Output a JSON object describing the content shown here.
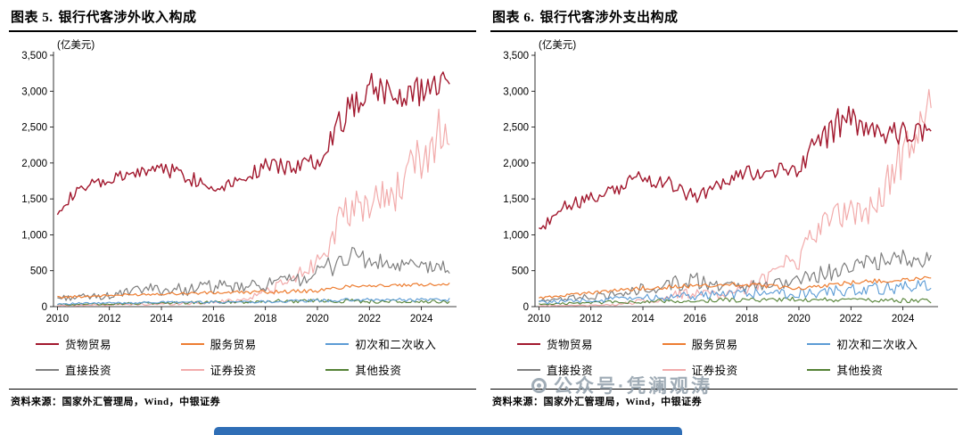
{
  "source_note": "资料来源：国家外汇管理局，Wind，中银证券",
  "watermark": {
    "text": "公众号·凭澜观涛",
    "color": "#94a1ac"
  },
  "panels": [
    {
      "title_prefix": "图表 5.",
      "title": "银行代客涉外收入构成"
    },
    {
      "title_prefix": "图表 6.",
      "title": "银行代客涉外支出构成"
    }
  ],
  "chart_data": [
    {
      "type": "line",
      "title": "银行代客涉外收入构成",
      "unit_label": "(亿美元)",
      "x_range": [
        2009.85,
        2025.35
      ],
      "y_range": [
        0,
        3500
      ],
      "x_ticks": [
        2010,
        2012,
        2014,
        2016,
        2018,
        2020,
        2022,
        2024
      ],
      "y_ticks": [
        0,
        500,
        1000,
        1500,
        2000,
        2500,
        3000,
        3500
      ],
      "y_tick_labels": [
        "0",
        "500",
        "1,000",
        "1,500",
        "2,000",
        "2,500",
        "3,000",
        "3,500"
      ],
      "legend_position": "bottom",
      "grid": false,
      "series": [
        {
          "name": "货物贸易",
          "color": "#A2182E",
          "z": 6,
          "width": 1.4,
          "anchors": [
            [
              2010,
              1350,
              70
            ],
            [
              2010.6,
              1550,
              80
            ],
            [
              2011,
              1650,
              90
            ],
            [
              2012,
              1750,
              100
            ],
            [
              2013,
              1850,
              100
            ],
            [
              2014,
              1950,
              110
            ],
            [
              2015,
              1820,
              120
            ],
            [
              2016,
              1650,
              100
            ],
            [
              2017,
              1780,
              90
            ],
            [
              2018,
              1950,
              110
            ],
            [
              2019,
              1950,
              120
            ],
            [
              2020,
              2050,
              150
            ],
            [
              2020.8,
              2550,
              180
            ],
            [
              2021.5,
              2850,
              250
            ],
            [
              2021.9,
              3150,
              280
            ],
            [
              2022.4,
              3050,
              230
            ],
            [
              2023,
              2950,
              200
            ],
            [
              2024,
              3000,
              230
            ],
            [
              2025.1,
              3250,
              160
            ]
          ]
        },
        {
          "name": "服务贸易",
          "color": "#ED7D31",
          "z": 5,
          "width": 1.2,
          "anchors": [
            [
              2010,
              130,
              15
            ],
            [
              2014,
              180,
              20
            ],
            [
              2018,
              205,
              25
            ],
            [
              2020,
              220,
              25
            ],
            [
              2021.5,
              300,
              30
            ],
            [
              2023,
              290,
              25
            ],
            [
              2025.1,
              320,
              20
            ]
          ]
        },
        {
          "name": "初次和二次收入",
          "color": "#5B9BD5",
          "z": 4,
          "width": 1.1,
          "anchors": [
            [
              2010,
              40,
              12
            ],
            [
              2014,
              60,
              15
            ],
            [
              2018,
              70,
              20
            ],
            [
              2021,
              90,
              25
            ],
            [
              2025.1,
              100,
              28
            ]
          ]
        },
        {
          "name": "直接投资",
          "color": "#7F7F7F",
          "z": 3,
          "width": 1.2,
          "anchors": [
            [
              2010,
              120,
              40
            ],
            [
              2012,
              150,
              50
            ],
            [
              2013.5,
              250,
              80
            ],
            [
              2014.5,
              230,
              90
            ],
            [
              2016,
              280,
              100
            ],
            [
              2017,
              260,
              80
            ],
            [
              2018,
              310,
              90
            ],
            [
              2019,
              360,
              100
            ],
            [
              2020,
              460,
              120
            ],
            [
              2021,
              680,
              190
            ],
            [
              2021.6,
              700,
              200
            ],
            [
              2022,
              620,
              150
            ],
            [
              2023,
              560,
              120
            ],
            [
              2024,
              560,
              110
            ],
            [
              2025.1,
              540,
              90
            ]
          ]
        },
        {
          "name": "证券投资",
          "color": "#F2ABAB",
          "z": 1,
          "width": 1.2,
          "anchors": [
            [
              2010,
              15,
              6
            ],
            [
              2014,
              35,
              15
            ],
            [
              2016,
              60,
              30
            ],
            [
              2017,
              90,
              40
            ],
            [
              2018,
              210,
              80
            ],
            [
              2019,
              360,
              100
            ],
            [
              2020,
              650,
              180
            ],
            [
              2021,
              1250,
              250
            ],
            [
              2022,
              1450,
              280
            ],
            [
              2023,
              1600,
              300
            ],
            [
              2024,
              2050,
              380
            ],
            [
              2024.7,
              2450,
              380
            ],
            [
              2025.1,
              2250,
              250
            ]
          ]
        },
        {
          "name": "其他投资",
          "color": "#548235",
          "z": 2,
          "width": 1.1,
          "anchors": [
            [
              2010,
              30,
              12
            ],
            [
              2015,
              55,
              20
            ],
            [
              2020,
              85,
              30
            ],
            [
              2025.1,
              60,
              25
            ]
          ]
        }
      ]
    },
    {
      "type": "line",
      "title": "银行代客涉外支出构成",
      "unit_label": "(亿美元)",
      "x_range": [
        2009.85,
        2025.35
      ],
      "y_range": [
        0,
        3500
      ],
      "x_ticks": [
        2010,
        2012,
        2014,
        2016,
        2018,
        2020,
        2022,
        2024
      ],
      "y_ticks": [
        0,
        500,
        1000,
        1500,
        2000,
        2500,
        3000,
        3500
      ],
      "y_tick_labels": [
        "0",
        "500",
        "1,000",
        "1,500",
        "2,000",
        "2,500",
        "3,000",
        "3,500"
      ],
      "legend_position": "bottom",
      "grid": false,
      "series": [
        {
          "name": "货物贸易",
          "color": "#A2182E",
          "z": 6,
          "width": 1.4,
          "anchors": [
            [
              2010,
              1080,
              80
            ],
            [
              2011,
              1400,
              90
            ],
            [
              2012,
              1500,
              100
            ],
            [
              2013,
              1650,
              100
            ],
            [
              2014,
              1800,
              110
            ],
            [
              2015,
              1720,
              130
            ],
            [
              2016,
              1520,
              110
            ],
            [
              2017,
              1680,
              100
            ],
            [
              2018,
              1870,
              110
            ],
            [
              2019,
              1870,
              120
            ],
            [
              2020,
              1950,
              140
            ],
            [
              2021,
              2380,
              210
            ],
            [
              2021.8,
              2650,
              230
            ],
            [
              2022.5,
              2520,
              200
            ],
            [
              2023,
              2450,
              180
            ],
            [
              2024,
              2420,
              180
            ],
            [
              2025.1,
              2400,
              150
            ]
          ]
        },
        {
          "name": "服务贸易",
          "color": "#ED7D31",
          "z": 5,
          "width": 1.2,
          "anchors": [
            [
              2010,
              120,
              15
            ],
            [
              2012,
              190,
              22
            ],
            [
              2014,
              260,
              30
            ],
            [
              2016,
              290,
              30
            ],
            [
              2018,
              310,
              30
            ],
            [
              2020,
              250,
              30
            ],
            [
              2022,
              330,
              35
            ],
            [
              2025.1,
              410,
              30
            ]
          ]
        },
        {
          "name": "初次和二次收入",
          "color": "#5B9BD5",
          "z": 4,
          "width": 1.1,
          "anchors": [
            [
              2010,
              60,
              25
            ],
            [
              2014,
              120,
              50
            ],
            [
              2016,
              150,
              60
            ],
            [
              2018,
              180,
              70
            ],
            [
              2020,
              180,
              70
            ],
            [
              2022,
              230,
              80
            ],
            [
              2025.1,
              290,
              90
            ]
          ]
        },
        {
          "name": "直接投资",
          "color": "#7F7F7F",
          "z": 3,
          "width": 1.2,
          "anchors": [
            [
              2010,
              90,
              35
            ],
            [
              2013,
              160,
              55
            ],
            [
              2015,
              320,
              120
            ],
            [
              2016,
              360,
              130
            ],
            [
              2017,
              260,
              90
            ],
            [
              2019,
              310,
              90
            ],
            [
              2020,
              360,
              100
            ],
            [
              2021,
              460,
              120
            ],
            [
              2022,
              560,
              130
            ],
            [
              2023,
              610,
              130
            ],
            [
              2024,
              660,
              130
            ],
            [
              2025.1,
              650,
              110
            ]
          ]
        },
        {
          "name": "证券投资",
          "color": "#F2ABAB",
          "z": 1,
          "width": 1.2,
          "anchors": [
            [
              2010,
              10,
              5
            ],
            [
              2013,
              25,
              12
            ],
            [
              2014.6,
              110,
              60
            ],
            [
              2016,
              210,
              80
            ],
            [
              2017,
              160,
              60
            ],
            [
              2018,
              260,
              80
            ],
            [
              2019,
              420,
              120
            ],
            [
              2020,
              700,
              200
            ],
            [
              2021,
              1200,
              250
            ],
            [
              2022,
              1300,
              250
            ],
            [
              2023,
              1500,
              300
            ],
            [
              2024,
              2100,
              350
            ],
            [
              2024.8,
              2700,
              330
            ],
            [
              2025.1,
              2800,
              250
            ]
          ]
        },
        {
          "name": "其他投资",
          "color": "#548235",
          "z": 2,
          "width": 1.1,
          "anchors": [
            [
              2010,
              40,
              15
            ],
            [
              2016,
              85,
              30
            ],
            [
              2020,
              100,
              35
            ],
            [
              2025.1,
              80,
              30
            ]
          ]
        }
      ]
    }
  ]
}
